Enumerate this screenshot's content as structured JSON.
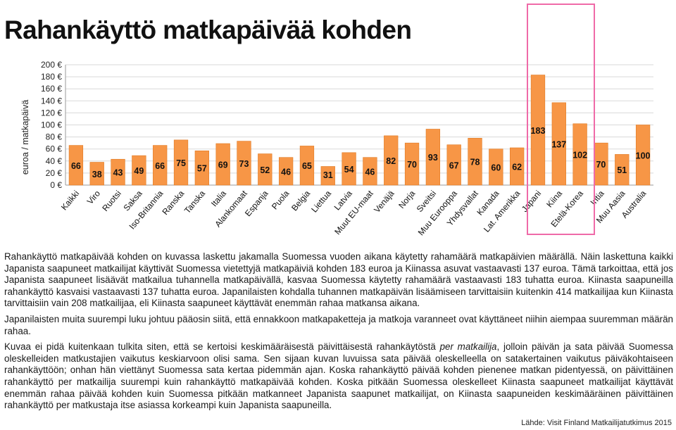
{
  "title": "Rahankäyttö matkapäivää kohden",
  "chart_data": {
    "type": "bar",
    "ylabel": "euroa / matkapäivä",
    "ylim": [
      0,
      200
    ],
    "ytick_step": 20,
    "ytick_labels": [
      "0 €",
      "20 €",
      "40 €",
      "60 €",
      "80 €",
      "100 €",
      "120 €",
      "140 €",
      "160 €",
      "180 €",
      "200 €"
    ],
    "categories": [
      "Kaikki",
      "Viro",
      "Ruotsi",
      "Saksa",
      "Iso-Britannia",
      "Ranska",
      "Tanska",
      "Italia",
      "Alankomaat",
      "Espanja",
      "Puola",
      "Belgia",
      "Liettua",
      "Latvia",
      "Muut EU-maat",
      "Venäjä",
      "Norja",
      "Sveitsi",
      "Muu Eurooppa",
      "Yhdysvallat",
      "Kanada",
      "Lat. Amerikka",
      "Japani",
      "Kiina",
      "Etelä-Korea",
      "Intia",
      "Muu Aasia",
      "Australia"
    ],
    "values": [
      66,
      38,
      43,
      49,
      66,
      75,
      57,
      69,
      73,
      52,
      46,
      65,
      31,
      54,
      46,
      82,
      70,
      93,
      67,
      78,
      60,
      62,
      183,
      137,
      102,
      70,
      51,
      100
    ],
    "value_labels": [
      "66",
      "38",
      "43",
      "49",
      "66",
      "75",
      "57",
      "69",
      "73",
      "52",
      "46",
      "65",
      "31",
      "54",
      "46",
      "82",
      "70",
      "93",
      "67",
      "78",
      "60",
      "62",
      "183",
      "137",
      "102",
      "70",
      "51",
      "100"
    ],
    "highlight": [
      "Japani",
      "Kiina",
      "Etelä-Korea"
    ],
    "grid": true,
    "colors": {
      "bar": "#f79646",
      "bar_edge": "#e07b25",
      "highlight_box": "#ef6aa8",
      "grid": "#d9d9d9"
    }
  },
  "paragraphs": [
    [
      "Rahankäyttö matkapäivää kohden on kuvassa laskettu jakamalla Suomessa vuoden aikana käytetty rahamäärä matkapäivien määrällä. Näin laskettuna kaikki Japanista saapuneet matkailijat käyttivät Suomessa vietettyjä matkapäiviä kohden 183 euroa ja Kiinassa asuvat vastaavasti 137 euroa. Tämä tarkoittaa, että jos Japanista saapuneet lisäävät matkailua tuhannella matkapäivällä, kasvaa Suomessa käytetty rahamäärä vastaavasti 183 tuhatta euroa. Kiinasta saapuneilla rahankäyttö kasvaisi vastaavasti 137 tuhatta euroa. Japanilaisten kohdalla tuhannen matkapäivän lisäämiseen tarvittaisiin kuitenkin 414 matkailijaa kun Kiinasta tarvittaisiin vain 208 matkailijaa, eli Kiinasta saapuneet käyttävät enemmän rahaa matkansa aikana."
    ],
    [
      "Japanilaisten muita suurempi luku johtuu pääosin siitä, että ennakkoon matkapaketteja ja matkoja varanneet ovat käyttäneet niihin aiempaa suuremman määrän rahaa."
    ],
    [
      "Kuvaa ei pidä kuitenkaan tulkita siten, että se kertoisi keskimääräisestä päivittäisestä rahankäytöstä ",
      "per matkailija",
      ", jolloin päivän ja sata päivää Suomessa oleskelleiden matkustajien vaikutus keskiarvoon olisi sama. Sen sijaan kuvan luvuissa sata päivää oleskelleella on satakertainen vaikutus päiväkohtaiseen rahankäyttöön; onhan hän viettänyt Suomessa sata kertaa pidemmän ajan. Koska rahankäyttö päivää kohden pienenee matkan pidentyessä, on päivittäinen rahankäyttö per matkailija suurempi kuin rahankäyttö matkapäivää kohden. Koska pitkään Suomessa oleskelleet Kiinasta saapuneet matkailijat käyttävät enemmän rahaa päivää kohden kuin Suomessa pitkään matkanneet Japanista saapunet matkailijat, on Kiinasta saapuneiden keskimääräinen päivittäinen rahankäyttö per matkustaja itse asiassa korkeampi kuin Japanista saapuneilla."
    ]
  ],
  "source": "Lähde: Visit Finland Matkailijatutkimus 2015"
}
